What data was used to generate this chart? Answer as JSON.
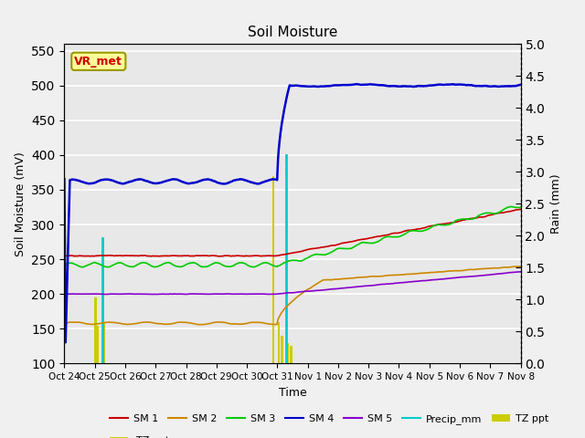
{
  "title": "Soil Moisture",
  "xlabel": "Time",
  "ylabel_left": "Soil Moisture (mV)",
  "ylabel_right": "Rain (mm)",
  "ylim_left": [
    100,
    560
  ],
  "ylim_right": [
    0.0,
    5.0
  ],
  "yticks_left": [
    100,
    150,
    200,
    250,
    300,
    350,
    400,
    450,
    500,
    550
  ],
  "yticks_right": [
    0.0,
    0.5,
    1.0,
    1.5,
    2.0,
    2.5,
    3.0,
    3.5,
    4.0,
    4.5,
    5.0
  ],
  "x_tick_labels": [
    "Oct 24",
    "Oct 25",
    "Oct 26",
    "Oct 27",
    "Oct 28",
    "Oct 29",
    "Oct 30",
    "Oct 31",
    "Nov 1",
    "Nov 2",
    "Nov 3",
    "Nov 4",
    "Nov 5",
    "Nov 6",
    "Nov 7",
    "Nov 8"
  ],
  "background_color": "#e8e8e8",
  "figure_background": "#f0f0f0",
  "grid_color": "#ffffff",
  "vr_met_label": "VR_met",
  "vr_met_bg": "#ffff99",
  "vr_met_text": "#cc0000",
  "sm1_color": "#cc0000",
  "sm2_color": "#cc8800",
  "sm3_color": "#00cc00",
  "sm4_color": "#0000cc",
  "sm5_color": "#8800cc",
  "precip_color": "#00cccc",
  "tzppt_color": "#cccc00",
  "num_points": 1500
}
